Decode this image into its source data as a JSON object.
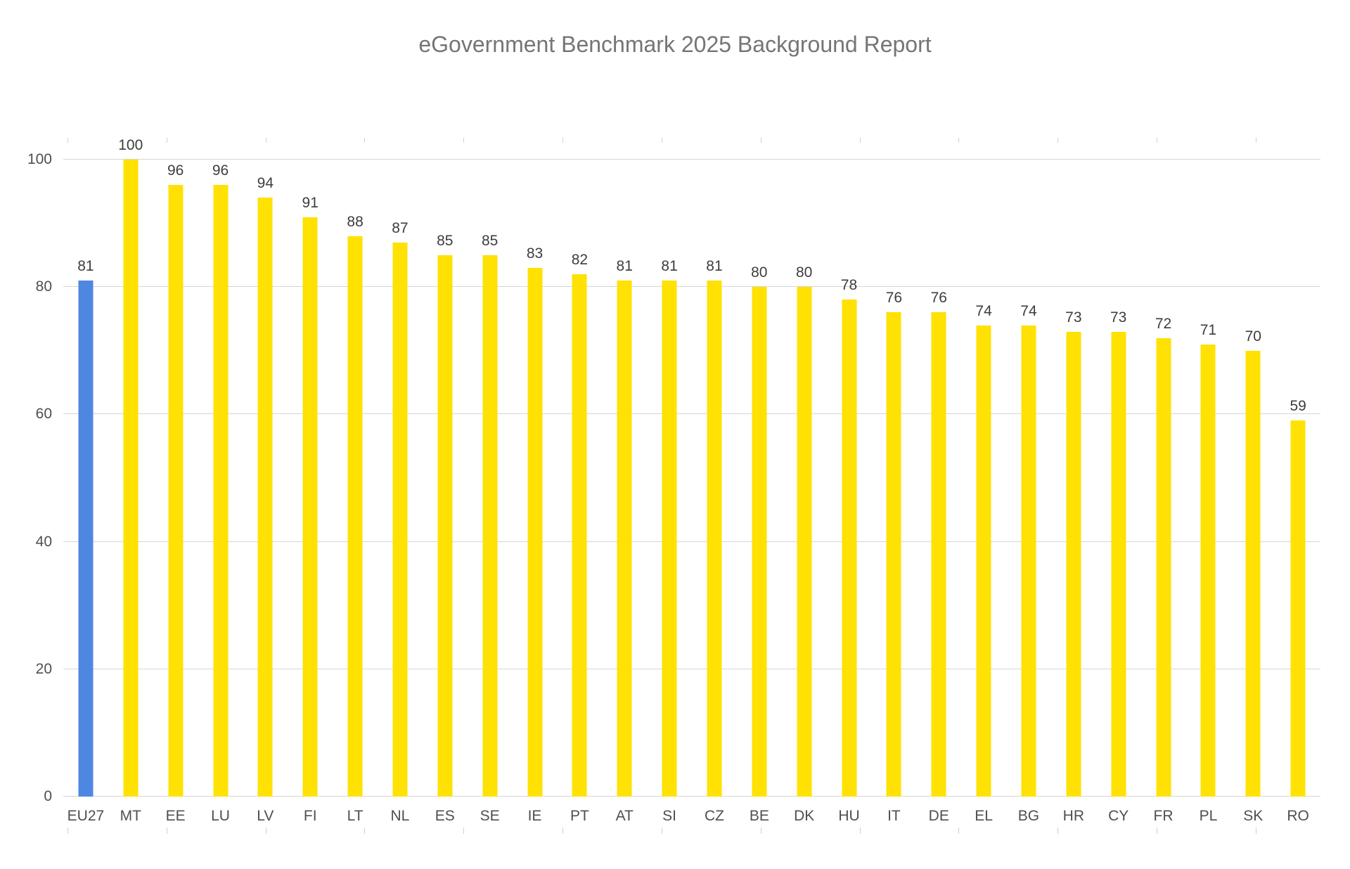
{
  "chart_data": {
    "type": "bar",
    "title": "eGovernment Benchmark 2025 Background Report",
    "categories": [
      "EU27",
      "MT",
      "EE",
      "LU",
      "LV",
      "FI",
      "LT",
      "NL",
      "ES",
      "SE",
      "IE",
      "PT",
      "AT",
      "SI",
      "CZ",
      "BE",
      "DK",
      "HU",
      "IT",
      "DE",
      "EL",
      "BG",
      "HR",
      "CY",
      "FR",
      "PL",
      "SK",
      "RO"
    ],
    "values": [
      81,
      100,
      96,
      96,
      94,
      91,
      88,
      87,
      85,
      85,
      83,
      82,
      81,
      81,
      81,
      80,
      80,
      78,
      76,
      76,
      74,
      74,
      73,
      73,
      72,
      71,
      70,
      59
    ],
    "highlight_category": "EU27",
    "value_labels_shown": true,
    "xlabel": "",
    "ylabel": "",
    "ylim": [
      0,
      100
    ],
    "yticks": [
      0,
      20,
      40,
      60,
      80,
      100
    ],
    "grid": "horizontal",
    "legend": "none",
    "colors": {
      "bar_default": "#FFE103",
      "bar_highlight": "#4E87E2",
      "title_text": "#757575",
      "axis_text": "#4F4F4F",
      "value_label_text": "#3D3D3D",
      "gridline": "#D6D6D6",
      "tick": "#D0D0D0"
    }
  }
}
